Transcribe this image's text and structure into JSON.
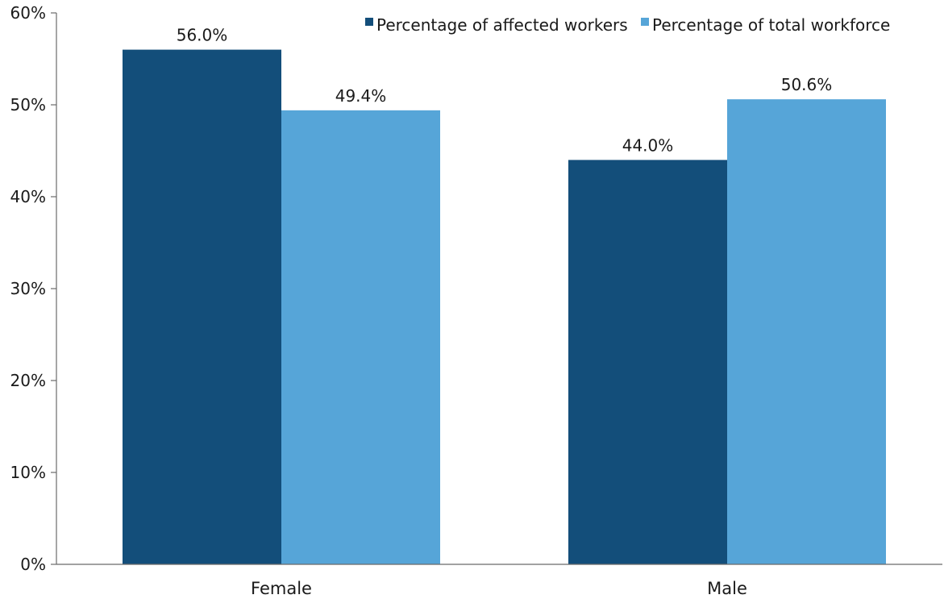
{
  "chart_data": {
    "type": "bar",
    "title": "",
    "xlabel": "",
    "ylabel": "",
    "categories": [
      "Female",
      "Male"
    ],
    "series": [
      {
        "name": "Percentage of affected workers",
        "color": "#134e7a",
        "values": [
          56.0,
          44.0
        ],
        "labels": [
          "56.0%",
          "44.0%"
        ]
      },
      {
        "name": "Percentage of total workforce",
        "color": "#56a5d8",
        "values": [
          49.4,
          50.6
        ],
        "labels": [
          "49.4%",
          "50.6%"
        ]
      }
    ],
    "ylim": [
      0,
      60
    ],
    "yticks": [
      0,
      10,
      20,
      30,
      40,
      50,
      60
    ],
    "ytick_labels": [
      "0%",
      "10%",
      "20%",
      "30%",
      "40%",
      "50%",
      "60%"
    ],
    "grid": false,
    "legend_position": "top-right"
  }
}
